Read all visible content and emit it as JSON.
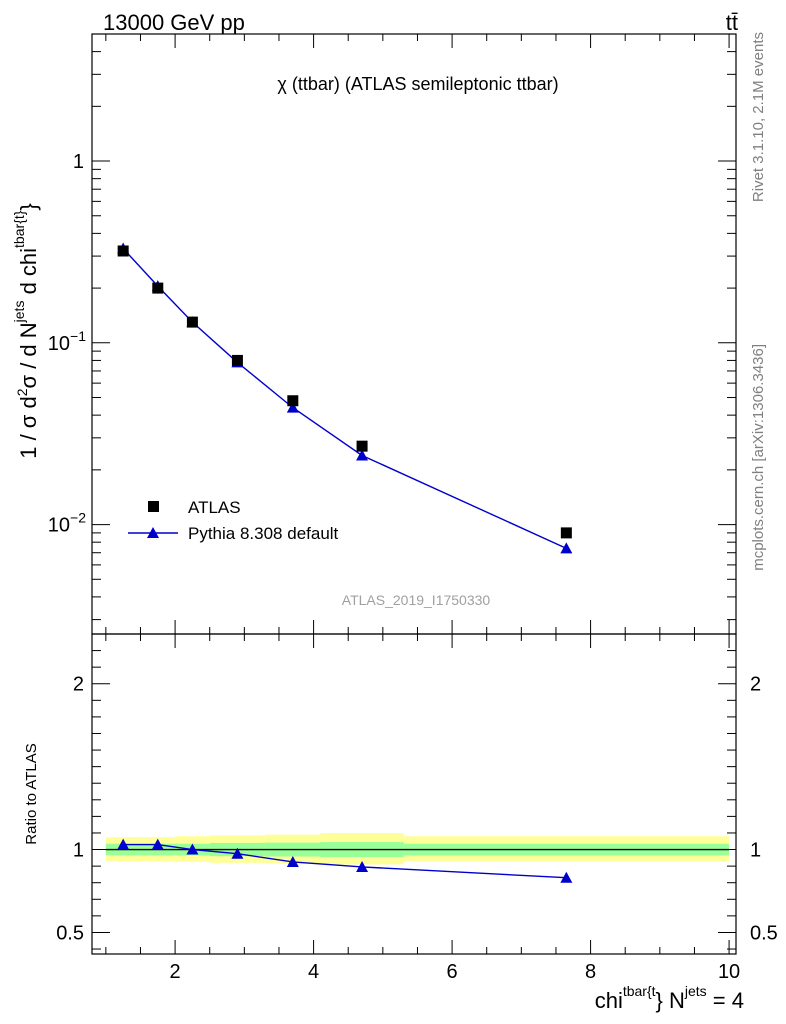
{
  "header": {
    "energy_label": "13000 GeV pp",
    "process_label": "tt̄"
  },
  "side_labels": {
    "rivet": "Rivet 3.1.10,  2.1M events",
    "mcplots": "mcplots.cern.ch [arXiv:1306.3436]"
  },
  "chart_data": [
    {
      "type": "scatter",
      "title": "χ (ttbar) (ATLAS semileptonic ttbar)",
      "watermark": "ATLAS_2019_I1750330",
      "ylabel": "1 / σ d²σ / d N^jets d chi^tbar{t}",
      "yscale": "log",
      "ylim": [
        0.0025,
        5
      ],
      "xlim": [
        0.8,
        10.1
      ],
      "yticks": [
        {
          "value": 1,
          "label": "1"
        },
        {
          "value": 0.1,
          "label": "10",
          "sup": "−1"
        },
        {
          "value": 0.01,
          "label": "10",
          "sup": "−2"
        }
      ],
      "legend_position": "lower-left",
      "series": [
        {
          "name": "ATLAS",
          "marker": "square",
          "color": "#000000",
          "x": [
            1.25,
            1.75,
            2.25,
            2.9,
            3.7,
            4.7,
            7.65
          ],
          "y": [
            0.32,
            0.2,
            0.13,
            0.08,
            0.048,
            0.027,
            0.009
          ]
        },
        {
          "name": "Pythia 8.308 default",
          "marker": "triangle",
          "color": "#0000cc",
          "x": [
            1.25,
            1.75,
            2.25,
            2.9,
            3.7,
            4.7,
            7.65
          ],
          "y": [
            0.33,
            0.205,
            0.13,
            0.078,
            0.044,
            0.024,
            0.0074
          ]
        }
      ]
    },
    {
      "type": "line",
      "ylabel": "Ratio to ATLAS",
      "xlabel": "chi^tbar{t} N^jets = 4",
      "xlim": [
        0.8,
        10.1
      ],
      "ylim": [
        0.37,
        2.3
      ],
      "xticks": [
        2,
        4,
        6,
        8,
        10
      ],
      "yticks": [
        0.5,
        1,
        2
      ],
      "reference_line": 1,
      "bands": [
        {
          "x0": 1.0,
          "x1": 1.5,
          "green": [
            0.965,
            1.035
          ],
          "yellow": [
            0.93,
            1.075
          ]
        },
        {
          "x0": 1.5,
          "x1": 2.0,
          "green": [
            0.965,
            1.035
          ],
          "yellow": [
            0.93,
            1.075
          ]
        },
        {
          "x0": 2.0,
          "x1": 2.5,
          "green": [
            0.965,
            1.035
          ],
          "yellow": [
            0.925,
            1.08
          ]
        },
        {
          "x0": 2.5,
          "x1": 3.3,
          "green": [
            0.96,
            1.04
          ],
          "yellow": [
            0.92,
            1.085
          ]
        },
        {
          "x0": 3.3,
          "x1": 4.1,
          "green": [
            0.958,
            1.042
          ],
          "yellow": [
            0.915,
            1.09
          ]
        },
        {
          "x0": 4.1,
          "x1": 5.3,
          "green": [
            0.955,
            1.045
          ],
          "yellow": [
            0.91,
            1.1
          ]
        },
        {
          "x0": 5.3,
          "x1": 10.0,
          "green": [
            0.965,
            1.035
          ],
          "yellow": [
            0.93,
            1.08
          ]
        }
      ],
      "series": [
        {
          "name": "Pythia 8.308 default",
          "marker": "triangle",
          "color": "#0000cc",
          "x": [
            1.25,
            1.75,
            2.25,
            2.9,
            3.7,
            4.7,
            7.65
          ],
          "y": [
            1.03,
            1.03,
            1.0,
            0.975,
            0.925,
            0.895,
            0.83
          ]
        }
      ]
    }
  ]
}
